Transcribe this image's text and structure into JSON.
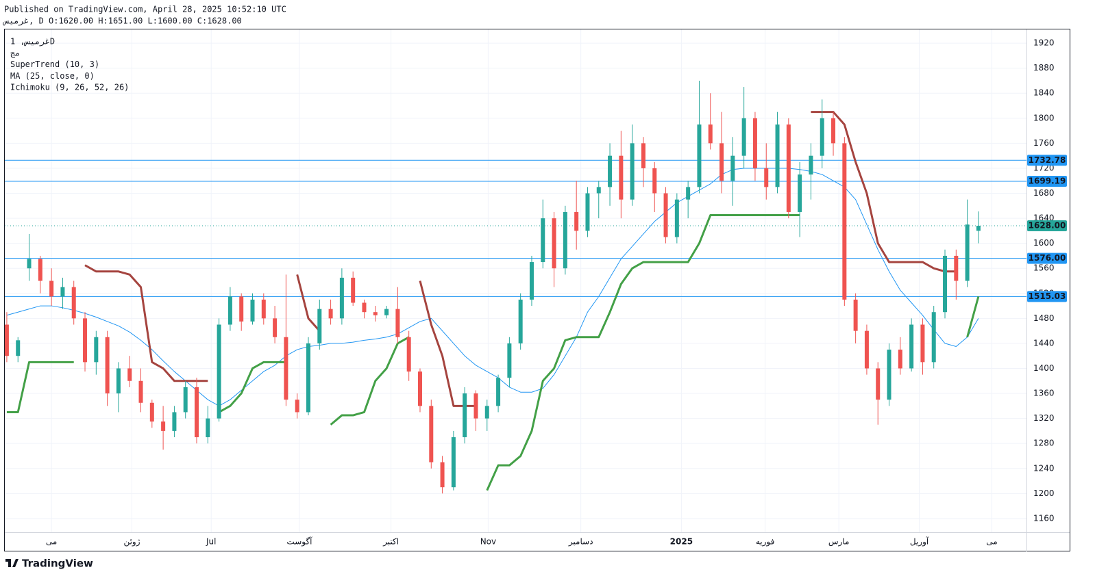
{
  "header": {
    "published": "Published on TradingView.com, April 28, 2025 10:52:10 UTC",
    "symbol_line": "غرمیس, D O:1620.00 H:1651.00 L:1600.00 C:1628.00",
    "logo": "TradingView"
  },
  "chart_data": {
    "type": "candlestick",
    "legend": [
      "غرمیس, 1D",
      "مج",
      "SuperTrend (10, 3)",
      "MA (25, close, 0)",
      "Ichimoku (9, 26, 52, 26)"
    ],
    "up_color": "#26a69a",
    "down_color": "#ef5350",
    "xlim": [
      -0.18,
      91.3
    ],
    "xticks": [
      {
        "value": 4.0,
        "label": "مى"
      },
      {
        "value": 11.2,
        "label": "ژوئن"
      },
      {
        "value": 18.3,
        "label": "Jul"
      },
      {
        "value": 26.2,
        "label": "آگوست"
      },
      {
        "value": 34.4,
        "label": "اکتبر"
      },
      {
        "value": 43.1,
        "label": "Nov"
      },
      {
        "value": 51.4,
        "label": "دسامبر"
      },
      {
        "value": 60.4,
        "label": "2025"
      },
      {
        "value": 67.9,
        "label": "فوریه"
      },
      {
        "value": 74.5,
        "label": "مارس"
      },
      {
        "value": 81.7,
        "label": "آوریل"
      },
      {
        "value": 88.2,
        "label": "مى"
      }
    ],
    "ylim": [
      1138,
      1942
    ],
    "yticks": [
      1160,
      1200,
      1240,
      1280,
      1320,
      1360,
      1400,
      1440,
      1480,
      1520,
      1560,
      1600,
      1640,
      1680,
      1720,
      1760,
      1800,
      1840,
      1880,
      1920
    ],
    "open": [
      1470,
      1420,
      1560,
      1575,
      1540,
      1515,
      1530,
      1480,
      1410,
      1450,
      1360,
      1400,
      1380,
      1345,
      1315,
      1300,
      1330,
      1370,
      1290,
      1320,
      1470,
      1515,
      1475,
      1510,
      1480,
      1450,
      1350,
      1330,
      1440,
      1495,
      1480,
      1545,
      1505,
      1490,
      1485,
      1495,
      1450,
      1395,
      1340,
      1250,
      1210,
      1290,
      1360,
      1320,
      1340,
      1385,
      1440,
      1510,
      1570,
      1640,
      1560,
      1650,
      1620,
      1680,
      1690,
      1740,
      1670,
      1760,
      1720,
      1680,
      1610,
      1670,
      1690,
      1790,
      1760,
      1700,
      1740,
      1800,
      1720,
      1690,
      1790,
      1650,
      1710,
      1740,
      1800,
      1760,
      1510,
      1460,
      1400,
      1350,
      1430,
      1400,
      1470,
      1410,
      1490,
      1580,
      1540,
      1620
    ],
    "high": [
      1490,
      1450,
      1615,
      1580,
      1560,
      1545,
      1540,
      1490,
      1460,
      1460,
      1410,
      1420,
      1400,
      1350,
      1340,
      1340,
      1380,
      1385,
      1340,
      1480,
      1530,
      1520,
      1520,
      1520,
      1500,
      1550,
      1360,
      1450,
      1510,
      1510,
      1560,
      1555,
      1510,
      1500,
      1500,
      1530,
      1460,
      1400,
      1350,
      1260,
      1300,
      1370,
      1365,
      1350,
      1390,
      1450,
      1520,
      1580,
      1670,
      1650,
      1660,
      1700,
      1690,
      1700,
      1760,
      1780,
      1790,
      1770,
      1730,
      1690,
      1680,
      1700,
      1860,
      1840,
      1810,
      1770,
      1850,
      1810,
      1760,
      1810,
      1800,
      1730,
      1760,
      1830,
      1810,
      1770,
      1520,
      1470,
      1410,
      1440,
      1450,
      1480,
      1480,
      1500,
      1590,
      1590,
      1670,
      1651
    ],
    "low": [
      1410,
      1410,
      1540,
      1520,
      1500,
      1495,
      1470,
      1395,
      1390,
      1340,
      1330,
      1370,
      1330,
      1305,
      1270,
      1290,
      1320,
      1280,
      1280,
      1315,
      1460,
      1460,
      1470,
      1470,
      1440,
      1340,
      1320,
      1325,
      1430,
      1470,
      1470,
      1500,
      1480,
      1475,
      1480,
      1440,
      1380,
      1330,
      1240,
      1200,
      1205,
      1280,
      1300,
      1300,
      1330,
      1370,
      1430,
      1500,
      1560,
      1530,
      1550,
      1590,
      1610,
      1640,
      1660,
      1640,
      1660,
      1690,
      1650,
      1600,
      1600,
      1640,
      1680,
      1750,
      1680,
      1660,
      1720,
      1700,
      1670,
      1680,
      1640,
      1610,
      1670,
      1720,
      1740,
      1500,
      1440,
      1390,
      1310,
      1340,
      1390,
      1395,
      1390,
      1400,
      1480,
      1510,
      1530,
      1600
    ],
    "close": [
      1420,
      1445,
      1575,
      1540,
      1515,
      1530,
      1480,
      1410,
      1450,
      1360,
      1400,
      1380,
      1345,
      1315,
      1300,
      1330,
      1370,
      1290,
      1320,
      1470,
      1515,
      1475,
      1510,
      1480,
      1450,
      1350,
      1330,
      1440,
      1495,
      1480,
      1545,
      1505,
      1490,
      1485,
      1495,
      1450,
      1395,
      1340,
      1250,
      1210,
      1290,
      1360,
      1320,
      1340,
      1385,
      1440,
      1510,
      1570,
      1640,
      1560,
      1650,
      1620,
      1680,
      1690,
      1740,
      1670,
      1760,
      1720,
      1680,
      1610,
      1670,
      1690,
      1790,
      1760,
      1700,
      1740,
      1800,
      1720,
      1690,
      1790,
      1650,
      1710,
      1740,
      1800,
      1760,
      1510,
      1460,
      1400,
      1350,
      1430,
      1400,
      1470,
      1410,
      1490,
      1580,
      1540,
      1630,
      1628
    ],
    "ma": {
      "color": "#2196f3",
      "values": [
        1485,
        1490,
        1495,
        1500,
        1500,
        1497,
        1493,
        1488,
        1482,
        1475,
        1468,
        1458,
        1445,
        1430,
        1412,
        1395,
        1380,
        1365,
        1350,
        1340,
        1350,
        1365,
        1380,
        1395,
        1405,
        1420,
        1430,
        1435,
        1437,
        1440,
        1440,
        1442,
        1445,
        1447,
        1450,
        1455,
        1465,
        1475,
        1480,
        1460,
        1440,
        1420,
        1405,
        1395,
        1385,
        1370,
        1362,
        1362,
        1368,
        1390,
        1420,
        1450,
        1490,
        1515,
        1545,
        1575,
        1595,
        1615,
        1635,
        1650,
        1665,
        1675,
        1685,
        1695,
        1710,
        1718,
        1720,
        1720,
        1720,
        1720,
        1720,
        1718,
        1715,
        1710,
        1700,
        1690,
        1670,
        1630,
        1590,
        1555,
        1525,
        1505,
        1485,
        1462,
        1440,
        1435,
        1450,
        1480
      ]
    },
    "supertrend": {
      "up_color": "#43a047",
      "down_color": "#a5443f",
      "up": [
        1330,
        1330,
        1410,
        1410,
        1410,
        1410,
        1410,
        null,
        null,
        null,
        null,
        null,
        null,
        null,
        null,
        null,
        null,
        null,
        null,
        1330,
        1340,
        1360,
        1400,
        1410,
        1410,
        1410,
        null,
        null,
        null,
        1310,
        1325,
        1325,
        1330,
        1380,
        1400,
        1440,
        1450,
        null,
        null,
        null,
        null,
        null,
        null,
        1205,
        1245,
        1245,
        1260,
        1300,
        1380,
        1400,
        1445,
        1450,
        1450,
        1450,
        1490,
        1535,
        1560,
        1570,
        1570,
        1570,
        1570,
        1570,
        1600,
        1645,
        1645,
        1645,
        1645,
        1645,
        1645,
        1645,
        1645,
        1645,
        null,
        null,
        null,
        null,
        null,
        null,
        null,
        null,
        null,
        null,
        null,
        null,
        null,
        null,
        1450,
        1515
      ],
      "down": [
        null,
        null,
        null,
        null,
        null,
        null,
        null,
        1565,
        1555,
        1555,
        1555,
        1550,
        1530,
        1410,
        1400,
        1380,
        1380,
        1380,
        1380,
        null,
        null,
        null,
        null,
        null,
        null,
        null,
        1550,
        1480,
        1460,
        null,
        null,
        null,
        null,
        null,
        null,
        null,
        null,
        1540,
        1470,
        1420,
        1340,
        1340,
        1340,
        null,
        null,
        null,
        null,
        null,
        null,
        null,
        null,
        null,
        null,
        null,
        null,
        null,
        null,
        null,
        null,
        null,
        null,
        null,
        null,
        null,
        null,
        null,
        null,
        null,
        null,
        null,
        null,
        null,
        1810,
        1810,
        1810,
        1790,
        1730,
        1680,
        1600,
        1570,
        1570,
        1570,
        1570,
        1560,
        1555,
        1555,
        null,
        null
      ]
    },
    "price_lines": [
      {
        "value": 1732.78,
        "color": "#2196f3"
      },
      {
        "value": 1699.19,
        "color": "#2196f3"
      },
      {
        "value": {
          "value": 1576,
          "label": "1576.00"
        },
        "color": "#2196f3"
      },
      {
        "value": 1515.03,
        "color": "#2196f3"
      },
      {
        "value": {
          "value": 1628,
          "label": "1628.00"
        },
        "color": "#26a69a",
        "dotted": true
      }
    ]
  }
}
